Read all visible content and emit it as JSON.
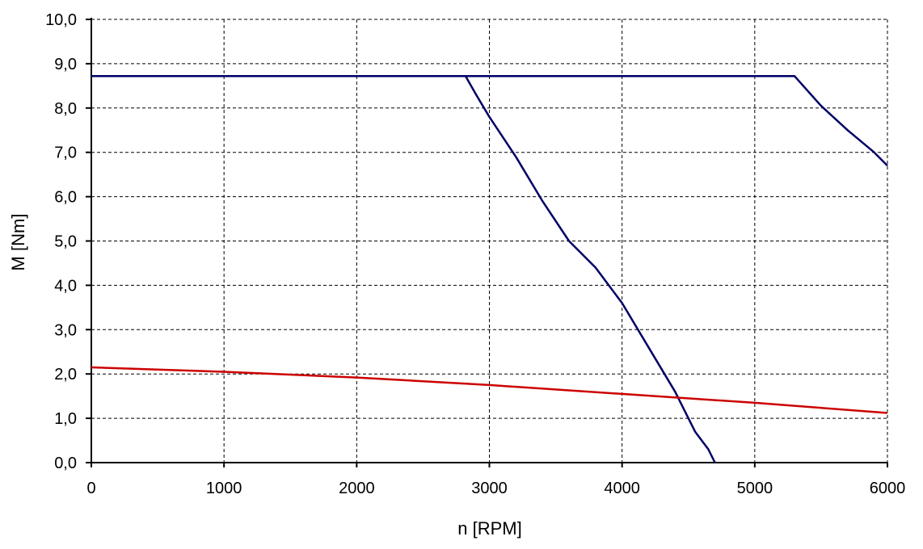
{
  "chart_data": {
    "type": "line",
    "title": "",
    "xlabel": "n [RPM]",
    "ylabel": "M [Nm]",
    "xlim": [
      0,
      6000
    ],
    "ylim": [
      0,
      10
    ],
    "grid": true,
    "grid_style": "dashed",
    "x_ticks": [
      "0",
      "1000",
      "2000",
      "3000",
      "4000",
      "5000",
      "6000"
    ],
    "y_ticks": [
      "0,0",
      "1,0",
      "2,0",
      "3,0",
      "4,0",
      "5,0",
      "6,0",
      "7,0",
      "8,0",
      "9,0",
      "10,0"
    ],
    "series": [
      {
        "color": "#000066",
        "x": [
          0,
          2820,
          2900,
          3000,
          3200,
          3400,
          3600,
          3800,
          4000,
          4200,
          4400,
          4550,
          4650,
          4700
        ],
        "y": [
          8.72,
          8.72,
          8.3,
          7.8,
          6.9,
          5.9,
          5.0,
          4.4,
          3.6,
          2.6,
          1.6,
          0.7,
          0.3,
          0.0
        ]
      },
      {
        "color": "#000066",
        "x": [
          0,
          5300,
          5500,
          5700,
          5900,
          6000
        ],
        "y": [
          8.72,
          8.72,
          8.05,
          7.5,
          7.0,
          6.7
        ]
      },
      {
        "color": "#cc0000",
        "x": [
          0,
          1000,
          2000,
          3000,
          4000,
          5000,
          6000
        ],
        "y": [
          2.15,
          2.05,
          1.92,
          1.75,
          1.55,
          1.35,
          1.12
        ]
      }
    ]
  }
}
